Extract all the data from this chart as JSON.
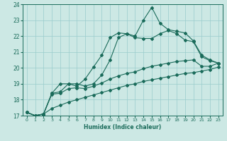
{
  "xlabel": "Humidex (Indice chaleur)",
  "bg_color": "#cce8e4",
  "line_color": "#1a6b5a",
  "grid_color": "#99cccc",
  "xlim": [
    -0.5,
    23.5
  ],
  "ylim": [
    17,
    24
  ],
  "yticks": [
    17,
    18,
    19,
    20,
    21,
    22,
    23,
    24
  ],
  "xticks": [
    0,
    1,
    2,
    3,
    4,
    5,
    6,
    7,
    8,
    9,
    10,
    11,
    12,
    13,
    14,
    15,
    16,
    17,
    18,
    19,
    20,
    21,
    22,
    23
  ],
  "x": [
    0,
    1,
    2,
    3,
    4,
    5,
    6,
    7,
    8,
    9,
    10,
    11,
    12,
    13,
    14,
    15,
    16,
    17,
    18,
    19,
    20,
    21,
    22,
    23
  ],
  "y_top": [
    17.2,
    17.0,
    17.1,
    18.4,
    19.0,
    19.0,
    18.85,
    19.3,
    20.05,
    20.8,
    21.9,
    22.2,
    22.15,
    22.0,
    23.0,
    23.8,
    22.8,
    22.4,
    22.3,
    22.2,
    21.7,
    20.8,
    20.5,
    20.3
  ],
  "y_mid": [
    17.2,
    17.0,
    17.1,
    18.4,
    18.5,
    19.0,
    19.0,
    18.85,
    19.0,
    19.55,
    20.5,
    21.9,
    22.15,
    21.9,
    21.85,
    21.85,
    22.15,
    22.35,
    22.15,
    21.75,
    21.65,
    20.7,
    20.45,
    20.3
  ],
  "y_lo1": [
    17.2,
    17.0,
    17.1,
    18.35,
    18.4,
    18.7,
    18.75,
    18.7,
    18.85,
    19.05,
    19.3,
    19.5,
    19.65,
    19.75,
    19.95,
    20.1,
    20.2,
    20.3,
    20.4,
    20.45,
    20.5,
    20.1,
    20.1,
    20.3
  ],
  "y_lo2": [
    17.2,
    17.0,
    17.1,
    17.45,
    17.65,
    17.85,
    18.0,
    18.15,
    18.3,
    18.45,
    18.6,
    18.75,
    18.9,
    19.0,
    19.15,
    19.25,
    19.35,
    19.45,
    19.55,
    19.65,
    19.7,
    19.8,
    19.9,
    20.05
  ]
}
